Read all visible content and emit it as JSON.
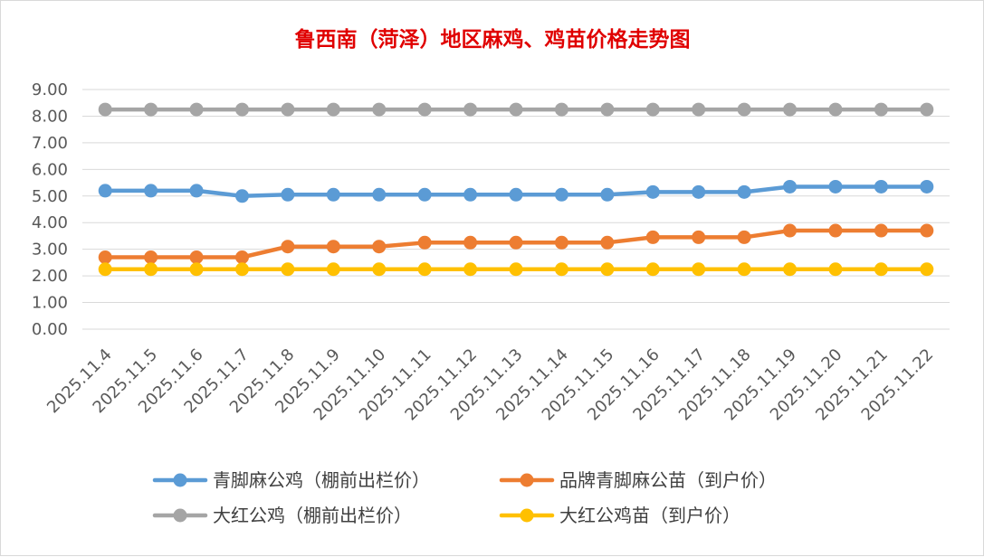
{
  "chart_data": {
    "type": "line",
    "title": "鲁西南（菏泽）地区麻鸡、鸡苗价格走势图",
    "xlabel": "",
    "ylabel": "",
    "ylim": [
      0,
      9
    ],
    "ytick_step": 1,
    "ytick_labels": [
      "0.00",
      "1.00",
      "2.00",
      "3.00",
      "4.00",
      "5.00",
      "6.00",
      "7.00",
      "8.00",
      "9.00"
    ],
    "grid": true,
    "legend_position": "bottom",
    "categories": [
      "2025.11.4",
      "2025.11.5",
      "2025.11.6",
      "2025.11.7",
      "2025.11.8",
      "2025.11.9",
      "2025.11.10",
      "2025.11.11",
      "2025.11.12",
      "2025.11.13",
      "2025.11.14",
      "2025.11.15",
      "2025.11.16",
      "2025.11.17",
      "2025.11.18",
      "2025.11.19",
      "2025.11.20",
      "2025.11.21",
      "2025.11.22"
    ],
    "series": [
      {
        "name": "青脚麻公鸡（棚前出栏价）",
        "color": "#5b9bd5",
        "values": [
          5.2,
          5.2,
          5.2,
          5.0,
          5.05,
          5.05,
          5.05,
          5.05,
          5.05,
          5.05,
          5.05,
          5.05,
          5.15,
          5.15,
          5.15,
          5.35,
          5.35,
          5.35,
          5.35
        ]
      },
      {
        "name": "品牌青脚麻公苗（到户价）",
        "color": "#ed7d31",
        "values": [
          2.7,
          2.7,
          2.7,
          2.7,
          3.1,
          3.1,
          3.1,
          3.25,
          3.25,
          3.25,
          3.25,
          3.25,
          3.45,
          3.45,
          3.45,
          3.7,
          3.7,
          3.7,
          3.7
        ]
      },
      {
        "name": "大红公鸡（棚前出栏价）",
        "color": "#a5a5a5",
        "values": [
          8.25,
          8.25,
          8.25,
          8.25,
          8.25,
          8.25,
          8.25,
          8.25,
          8.25,
          8.25,
          8.25,
          8.25,
          8.25,
          8.25,
          8.25,
          8.25,
          8.25,
          8.25,
          8.25
        ]
      },
      {
        "name": "大红公鸡苗（到户价）",
        "color": "#ffc000",
        "values": [
          2.25,
          2.25,
          2.25,
          2.25,
          2.25,
          2.25,
          2.25,
          2.25,
          2.25,
          2.25,
          2.25,
          2.25,
          2.25,
          2.25,
          2.25,
          2.25,
          2.25,
          2.25,
          2.25
        ]
      }
    ],
    "legend_order": [
      0,
      1,
      2,
      3
    ],
    "colors": {
      "grid": "#d9d9d9",
      "title": "#e00000",
      "tick_text": "#595959",
      "legend_text": "#404040"
    }
  }
}
